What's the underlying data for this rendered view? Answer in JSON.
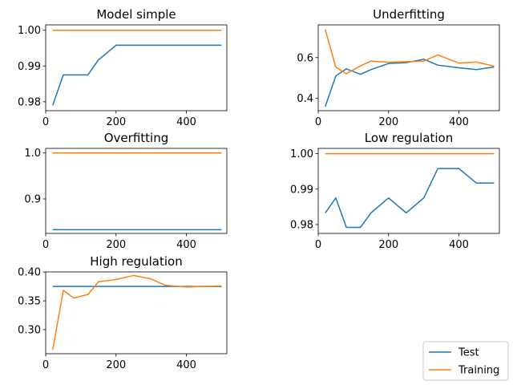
{
  "chart_data": [
    {
      "type": "line",
      "title": "Model simple",
      "xlim": [
        0,
        515
      ],
      "ylim": [
        0.9775,
        1.0015
      ],
      "xticks": [
        0,
        200,
        400
      ],
      "yticks": [
        0.98,
        0.99,
        1.0
      ],
      "ytick_labels": [
        "0.98",
        "0.99",
        "1.00"
      ],
      "series": [
        {
          "name": "Test",
          "color": "#1f77b4",
          "x": [
            20,
            50,
            80,
            120,
            150,
            200,
            250,
            300,
            340,
            400,
            450,
            500
          ],
          "y": [
            0.979,
            0.9875,
            0.9875,
            0.9875,
            0.9917,
            0.9958,
            0.9958,
            0.9958,
            0.9958,
            0.9958,
            0.9958,
            0.9958
          ]
        },
        {
          "name": "Training",
          "color": "#ff7f0e",
          "x": [
            20,
            50,
            80,
            120,
            150,
            200,
            250,
            300,
            340,
            400,
            450,
            500
          ],
          "y": [
            1.0,
            1.0,
            1.0,
            1.0,
            1.0,
            1.0,
            1.0,
            1.0,
            1.0,
            1.0,
            1.0,
            1.0
          ]
        }
      ]
    },
    {
      "type": "line",
      "title": "Underfitting",
      "xlim": [
        0,
        515
      ],
      "ylim": [
        0.34,
        0.76
      ],
      "xticks": [
        0,
        200,
        400
      ],
      "yticks": [
        0.4,
        0.6
      ],
      "ytick_labels": [
        "0.4",
        "0.6"
      ],
      "series": [
        {
          "name": "Test",
          "color": "#1f77b4",
          "x": [
            20,
            50,
            80,
            120,
            150,
            200,
            250,
            300,
            340,
            400,
            450,
            500
          ],
          "y": [
            0.36,
            0.51,
            0.545,
            0.518,
            0.541,
            0.571,
            0.575,
            0.592,
            0.563,
            0.55,
            0.541,
            0.554
          ]
        },
        {
          "name": "Training",
          "color": "#ff7f0e",
          "x": [
            20,
            50,
            80,
            120,
            150,
            200,
            250,
            300,
            340,
            400,
            450,
            500
          ],
          "y": [
            0.737,
            0.553,
            0.521,
            0.559,
            0.583,
            0.577,
            0.58,
            0.583,
            0.613,
            0.573,
            0.578,
            0.558
          ]
        }
      ]
    },
    {
      "type": "line",
      "title": "Overfitting",
      "xlim": [
        0,
        515
      ],
      "ylim": [
        0.825,
        1.01
      ],
      "xticks": [
        0,
        200,
        400
      ],
      "yticks": [
        0.9,
        1.0
      ],
      "ytick_labels": [
        "0.9",
        "1.0"
      ],
      "series": [
        {
          "name": "Test",
          "color": "#1f77b4",
          "x": [
            20,
            500
          ],
          "y": [
            0.833,
            0.833
          ]
        },
        {
          "name": "Training",
          "color": "#ff7f0e",
          "x": [
            20,
            500
          ],
          "y": [
            1.0,
            1.0
          ]
        }
      ]
    },
    {
      "type": "line",
      "title": "Low regulation",
      "xlim": [
        0,
        515
      ],
      "ylim": [
        0.9775,
        1.0015
      ],
      "xticks": [
        0,
        200,
        400
      ],
      "yticks": [
        0.98,
        0.99,
        1.0
      ],
      "ytick_labels": [
        "0.98",
        "0.99",
        "1.00"
      ],
      "series": [
        {
          "name": "Test",
          "color": "#1f77b4",
          "x": [
            20,
            50,
            80,
            120,
            150,
            200,
            250,
            300,
            340,
            400,
            450,
            500
          ],
          "y": [
            0.9833,
            0.9875,
            0.9792,
            0.9792,
            0.9833,
            0.9875,
            0.9833,
            0.9875,
            0.9958,
            0.9958,
            0.9917,
            0.9917
          ]
        },
        {
          "name": "Training",
          "color": "#ff7f0e",
          "x": [
            20,
            50,
            80,
            120,
            150,
            200,
            250,
            300,
            340,
            400,
            450,
            500
          ],
          "y": [
            1.0,
            1.0,
            1.0,
            1.0,
            1.0,
            1.0,
            1.0,
            1.0,
            1.0,
            1.0,
            1.0,
            1.0
          ]
        }
      ]
    },
    {
      "type": "line",
      "title": "High regulation",
      "xlim": [
        0,
        515
      ],
      "ylim": [
        0.2582,
        0.4002
      ],
      "xticks": [
        0,
        200,
        400
      ],
      "yticks": [
        0.3,
        0.35,
        0.4
      ],
      "ytick_labels": [
        "0.30",
        "0.35",
        "0.40"
      ],
      "series": [
        {
          "name": "Test",
          "color": "#1f77b4",
          "x": [
            20,
            500
          ],
          "y": [
            0.375,
            0.375
          ]
        },
        {
          "name": "Training",
          "color": "#ff7f0e",
          "x": [
            20,
            50,
            80,
            120,
            150,
            200,
            250,
            300,
            340,
            400,
            450,
            500
          ],
          "y": [
            0.265,
            0.368,
            0.355,
            0.361,
            0.383,
            0.387,
            0.394,
            0.388,
            0.377,
            0.374,
            0.375,
            0.376
          ]
        }
      ]
    }
  ],
  "legend": {
    "placement": "lower-right",
    "entries": [
      {
        "label": "Test",
        "color": "#1f77b4"
      },
      {
        "label": "Training",
        "color": "#ff7f0e"
      }
    ]
  }
}
